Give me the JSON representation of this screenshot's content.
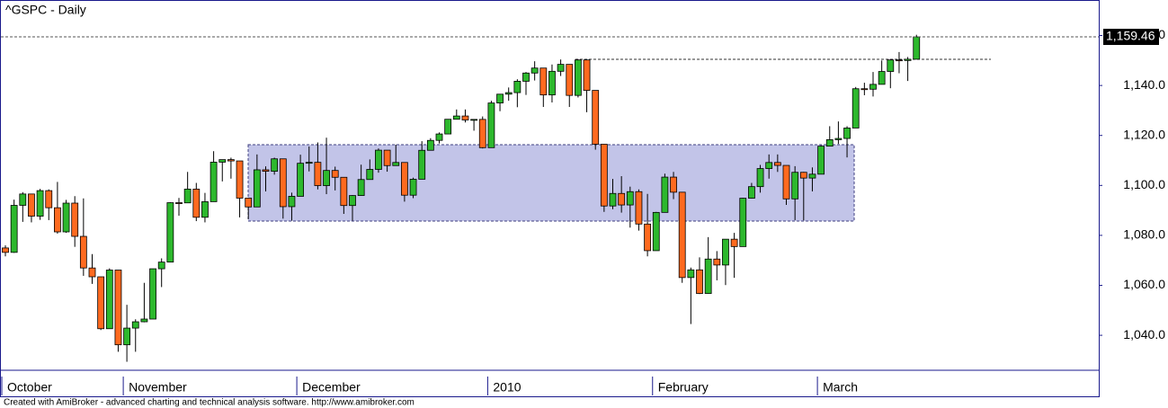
{
  "chart_data": {
    "type": "candlestick",
    "title": "^GSPC - Daily",
    "footer": "Created with AmiBroker - advanced charting and technical analysis software. http://www.amibroker.com",
    "categories": [
      "October",
      null,
      null,
      null,
      null,
      null,
      null,
      null,
      null,
      null,
      null,
      null,
      null,
      null,
      "November",
      null,
      null,
      null,
      null,
      null,
      null,
      null,
      null,
      null,
      null,
      null,
      null,
      null,
      null,
      null,
      null,
      null,
      null,
      null,
      "December",
      null,
      null,
      null,
      null,
      null,
      null,
      null,
      null,
      null,
      null,
      null,
      null,
      null,
      null,
      null,
      null,
      null,
      null,
      null,
      null,
      null,
      "2010",
      null,
      null,
      null,
      null,
      null,
      null,
      null,
      null,
      null,
      null,
      null,
      null,
      null,
      null,
      null,
      null,
      null,
      null,
      "February",
      null,
      null,
      null,
      null,
      null,
      null,
      null,
      null,
      null,
      null,
      null,
      null,
      null,
      null,
      null,
      null,
      null,
      null,
      "March",
      null,
      null,
      null,
      null,
      null,
      null,
      null,
      null,
      null,
      null,
      null
    ],
    "series": {
      "up_color": "#2db82d",
      "down_color": "#ff6a1f",
      "open": [
        1074.96,
        1073.19,
        1092.02,
        1096.56,
        1087.68,
        1097.91,
        1091.06,
        1081.4,
        1092.91,
        1079.6,
        1066.95,
        1063.41,
        1042.63,
        1066.11,
        1036.19,
        1042.88,
        1045.41,
        1046.5,
        1066.63,
        1069.3,
        1093.08,
        1093.01,
        1098.51,
        1087.24,
        1093.48,
        1109.3,
        1110.32,
        1109.8,
        1094.9,
        1091.38,
        1106.24,
        1105.65,
        1110.63,
        1091.49,
        1095.63,
        1108.86,
        1109.24,
        1099.92,
        1105.98,
        1103.25,
        1091.94,
        1095.95,
        1102.35,
        1106.41,
        1114.11,
        1107.93,
        1109.18,
        1096.08,
        1102.47,
        1114.05,
        1118.02,
        1120.59,
        1126.48,
        1127.78,
        1126.19,
        1126.42,
        1115.1,
        1132.99,
        1136.52,
        1137.14,
        1141.69,
        1144.98,
        1146.98,
        1136.22,
        1145.68,
        1148.46,
        1136.03,
        1150.23,
        1138.04,
        1116.48,
        1091.76,
        1096.78,
        1092.17,
        1097.5,
        1084.53,
        1073.87,
        1089.19,
        1103.32,
        1097.28,
        1063.11,
        1066.19,
        1056.74,
        1070.52,
        1068.13,
        1078.47,
        1075.51,
        1094.87,
        1099.51,
        1106.75,
        1109.17,
        1108.01,
        1094.6,
        1105.24,
        1102.94,
        1104.49,
        1115.71,
        1118.31,
        1118.79,
        1122.97,
        1138.7,
        1138.5,
        1140.45,
        1145.61,
        1150.24,
        1149.99,
        1150.51
      ],
      "high": [
        1076.0,
        1094.3,
        1097.3,
        1096.6,
        1098.6,
        1098.4,
        1101.4,
        1094.2,
        1095.7,
        1094.8,
        1072.5,
        1063.4,
        1066.8,
        1066.1,
        1052.2,
        1046.4,
        1061.0,
        1066.6,
        1070.8,
        1093.3,
        1095.0,
        1105.4,
        1101.0,
        1097.0,
        1113.7,
        1110.3,
        1111.1,
        1109.8,
        1094.9,
        1112.4,
        1107.6,
        1111.1,
        1110.6,
        1097.1,
        1112.3,
        1115.6,
        1117.2,
        1119.1,
        1107.5,
        1103.3,
        1096.1,
        1108.3,
        1110.4,
        1114.8,
        1114.1,
        1116.3,
        1109.2,
        1103.1,
        1117.7,
        1118.9,
        1121.2,
        1126.5,
        1130.4,
        1130.4,
        1126.4,
        1127.6,
        1133.9,
        1136.6,
        1139.2,
        1142.5,
        1145.4,
        1149.7,
        1147.0,
        1148.4,
        1150.4,
        1147.8,
        1150.4,
        1150.2,
        1138.0,
        1115.5,
        1102.6,
        1103.7,
        1099.5,
        1098.4,
        1096.6,
        1089.4,
        1104.7,
        1105.4,
        1097.3,
        1067.1,
        1071.2,
        1079.3,
        1073.7,
        1078.5,
        1081.0,
        1095.0,
        1101.0,
        1108.2,
        1112.4,
        1112.4,
        1108.0,
        1107.7,
        1105.4,
        1107.2,
        1116.1,
        1123.7,
        1125.6,
        1123.7,
        1139.4,
        1141.1,
        1145.4,
        1150.0,
        1150.2,
        1153.4,
        1151.4,
        1160.3
      ],
      "low": [
        1071.6,
        1073.0,
        1085.4,
        1085.2,
        1086.2,
        1086.1,
        1080.7,
        1081.0,
        1075.4,
        1063.8,
        1060.6,
        1042.1,
        1042.6,
        1033.4,
        1029.4,
        1033.4,
        1045.2,
        1046.5,
        1059.3,
        1069.3,
        1087.9,
        1093.0,
        1085.7,
        1085.2,
        1093.5,
        1101.6,
        1102.7,
        1087.2,
        1086.5,
        1091.4,
        1097.6,
        1104.3,
        1086.7,
        1085.9,
        1095.6,
        1105.6,
        1098.4,
        1096.5,
        1098.0,
        1088.6,
        1085.9,
        1095.9,
        1102.3,
        1105.1,
        1105.5,
        1107.9,
        1093.5,
        1094.9,
        1102.5,
        1114.0,
        1116.8,
        1120.6,
        1126.5,
        1125.2,
        1121.9,
        1114.8,
        1115.1,
        1129.7,
        1133.9,
        1131.3,
        1136.2,
        1142.0,
        1131.4,
        1133.2,
        1143.8,
        1131.4,
        1135.2,
        1129.3,
        1114.3,
        1089.4,
        1090.5,
        1089.1,
        1083.1,
        1081.9,
        1071.6,
        1073.9,
        1089.2,
        1094.5,
        1061.0,
        1044.5,
        1056.5,
        1056.7,
        1062.0,
        1060.1,
        1063.0,
        1075.5,
        1094.7,
        1097.1,
        1102.7,
        1105.4,
        1092.2,
        1086.1,
        1086.0,
        1097.6,
        1104.5,
        1115.7,
        1116.6,
        1111.2,
        1123.0,
        1136.1,
        1135.6,
        1140.5,
        1138.9,
        1144.9,
        1141.8,
        1150.5
      ],
      "close": [
        1073.19,
        1092.02,
        1096.56,
        1087.68,
        1097.91,
        1091.06,
        1081.4,
        1092.91,
        1079.6,
        1066.95,
        1063.41,
        1042.63,
        1066.11,
        1036.19,
        1042.88,
        1045.41,
        1046.5,
        1066.63,
        1069.3,
        1093.08,
        1093.01,
        1098.51,
        1087.24,
        1093.48,
        1109.3,
        1110.32,
        1109.8,
        1094.9,
        1091.38,
        1106.24,
        1105.65,
        1110.63,
        1091.49,
        1095.63,
        1108.86,
        1109.24,
        1099.92,
        1105.98,
        1103.25,
        1091.94,
        1095.95,
        1102.35,
        1106.41,
        1114.11,
        1107.93,
        1109.18,
        1096.08,
        1102.47,
        1114.05,
        1118.02,
        1120.59,
        1126.48,
        1127.78,
        1126.19,
        1126.42,
        1115.1,
        1132.99,
        1136.52,
        1137.14,
        1141.69,
        1144.98,
        1146.98,
        1136.22,
        1145.68,
        1148.46,
        1136.03,
        1150.23,
        1138.04,
        1116.48,
        1091.76,
        1096.78,
        1092.17,
        1097.5,
        1084.53,
        1073.87,
        1089.19,
        1103.32,
        1097.28,
        1063.11,
        1066.19,
        1056.74,
        1070.52,
        1068.13,
        1078.47,
        1075.51,
        1094.87,
        1099.51,
        1106.75,
        1109.17,
        1108.01,
        1094.6,
        1105.24,
        1102.94,
        1104.49,
        1115.71,
        1118.31,
        1118.79,
        1122.97,
        1138.7,
        1138.5,
        1140.45,
        1145.61,
        1150.24,
        1149.99,
        1150.51,
        1159.46
      ]
    },
    "last_label": "1,159.46",
    "ylim": [
      1026,
      1173.5
    ],
    "yticks": [
      {
        "value": 1040,
        "label": "1,040.0"
      },
      {
        "value": 1060,
        "label": "1,060.0"
      },
      {
        "value": 1080,
        "label": "1,080.0"
      },
      {
        "value": 1100,
        "label": "1,100.0"
      },
      {
        "value": 1120,
        "label": "1,120.0"
      },
      {
        "value": 1140,
        "label": "1,140.0"
      },
      {
        "value": 1160,
        "label": "1,160.0"
      }
    ]
  }
}
